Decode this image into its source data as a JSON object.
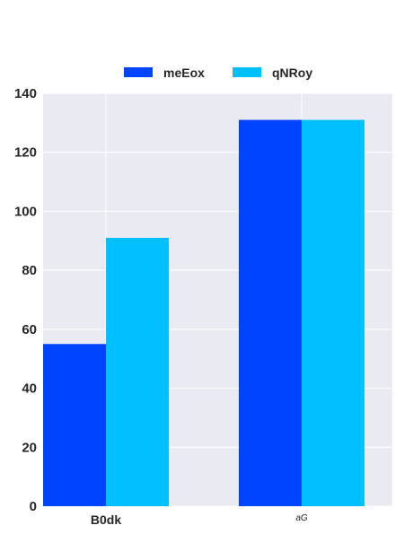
{
  "chart_data": {
    "type": "bar",
    "categories": [
      "B0dk",
      "aG"
    ],
    "series": [
      {
        "name": "meEox",
        "values": [
          55,
          131
        ],
        "color": "#0044ff"
      },
      {
        "name": "qNRoy",
        "values": [
          91,
          131
        ],
        "color": "#00c0ff"
      }
    ],
    "ylim": [
      0,
      140
    ],
    "yticks": [
      0,
      20,
      40,
      60,
      80,
      100,
      120,
      140
    ],
    "grid": true,
    "legend_position": "top-center",
    "background": "#eaeaf2",
    "grid_color": "#ffffff"
  }
}
